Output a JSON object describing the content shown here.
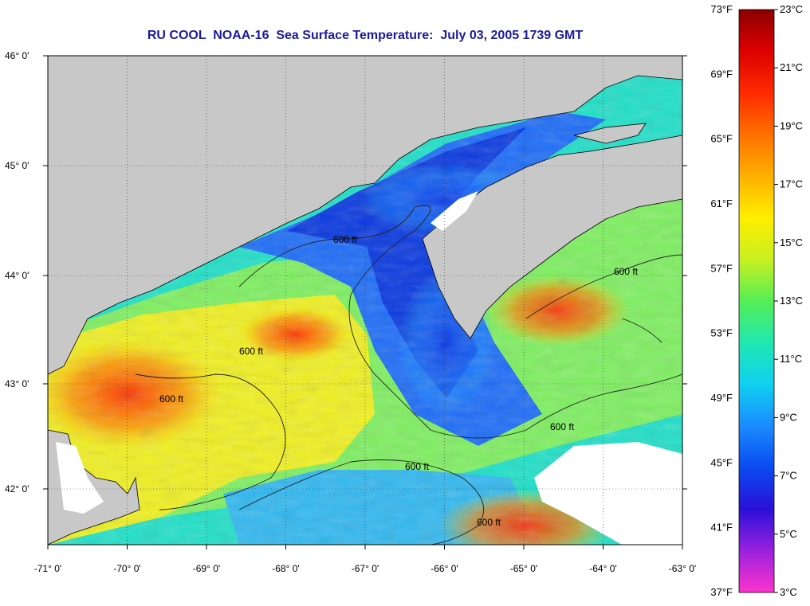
{
  "title": "RU COOL  NOAA-16  Sea Surface Temperature:  July 03, 2005 1739 GMT",
  "colors": {
    "title": "#1a1aa0",
    "land": "#c8c8c8",
    "cloud": "#ffffff",
    "contour": "#222222"
  },
  "lon_ticks": [
    "-71° 0'",
    "-70° 0'",
    "-69° 0'",
    "-68° 0'",
    "-67° 0'",
    "-66° 0'",
    "-65° 0'",
    "-64° 0'",
    "-63° 0'"
  ],
  "lat_ticks": [
    "46° 0'",
    "45° 0'",
    "44° 0'",
    "43° 0'",
    "42° 0'"
  ],
  "contour_label": "600 ft",
  "colorbar": {
    "fahrenheit": [
      "73°F",
      "69°F",
      "65°F",
      "61°F",
      "57°F",
      "53°F",
      "49°F",
      "45°F",
      "41°F",
      "37°F"
    ],
    "celsius": [
      "23°C",
      "21°C",
      "19°C",
      "17°C",
      "15°C",
      "13°C",
      "11°C",
      "9°C",
      "7°C",
      "5°C",
      "3°C"
    ],
    "range_c": [
      3,
      23
    ],
    "stops": [
      "#ff33cc",
      "#9922dd",
      "#2a10d8",
      "#0a4af0",
      "#1a8cff",
      "#10d0f0",
      "#20e8b0",
      "#55ee55",
      "#c8f020",
      "#ffee00",
      "#ffb000",
      "#ff7000",
      "#ff2a00",
      "#dd0000",
      "#8a0000"
    ]
  }
}
